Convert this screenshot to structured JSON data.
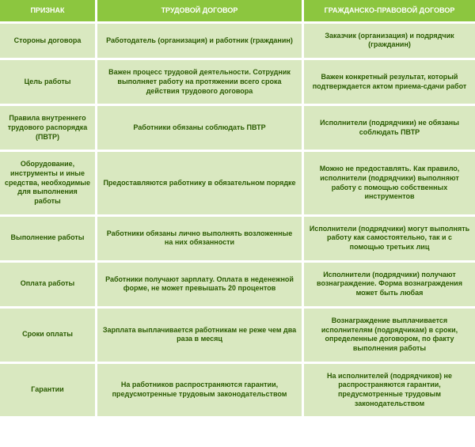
{
  "headers": {
    "col1": "ПРИЗНАК",
    "col2": "ТРУДОВОЙ ДОГОВОР",
    "col3": "ГРАЖДАНСКО-ПРАВОВОЙ ДОГОВОР"
  },
  "rows": [
    {
      "col1": "Стороны договора",
      "col2": "Работодатель (организация) и работник (гражданин)",
      "col3": "Заказчик (организация) и подрядчик (гражданин)"
    },
    {
      "col1": "Цель работы",
      "col2": "Важен процесс трудовой деятельности. Сотрудник выполняет работу на протяжении всего срока действия трудового договора",
      "col3": "Важен конкретный результат, который подтверждается актом приема-сдачи работ"
    },
    {
      "col1": "Правила внутреннего трудового распорядка (ПВТР)",
      "col2": "Работники обязаны соблюдать ПВТР",
      "col3": "Исполнители (подрядчики) не обязаны соблюдать ПВТР"
    },
    {
      "col1": "Оборудование, инструменты и иные средства, необходимые для выполнения работы",
      "col2": "Предоставляются работнику в обязательном порядке",
      "col3": "Можно не предоставлять. Как правило, исполнители (подрядчики) выполняют работу с помощью собственных инструментов"
    },
    {
      "col1": "Выполнение работы",
      "col2": "Работники обязаны лично выполнять возложенные на них обязанности",
      "col3": "Исполнители (подрядчики) могут выполнять работу как самостоятельно, так и с помощью третьих лиц"
    },
    {
      "col1": "Оплата работы",
      "col2": "Работники получают зарплату. Оплата в неденежной форме, не может превышать 20 процентов",
      "col3": "Исполнители (подрядчики) получают вознаграждение. Форма вознаграждения может быть любая"
    },
    {
      "col1": "Сроки оплаты",
      "col2": "Зарплата выплачивается работникам не реже чем два раза в месяц",
      "col3": "Вознаграждение выплачивается исполнителям (подрядчикам) в сроки, определенные договором, по факту выполнения работы"
    },
    {
      "col1": "Гарантии",
      "col2": "На работников распространяются гарантии, предусмотренные трудовым законодательством",
      "col3": "На исполнителей (подрядчиков) не распространяются гарантии, предусмотренные трудовым законодательством"
    }
  ]
}
